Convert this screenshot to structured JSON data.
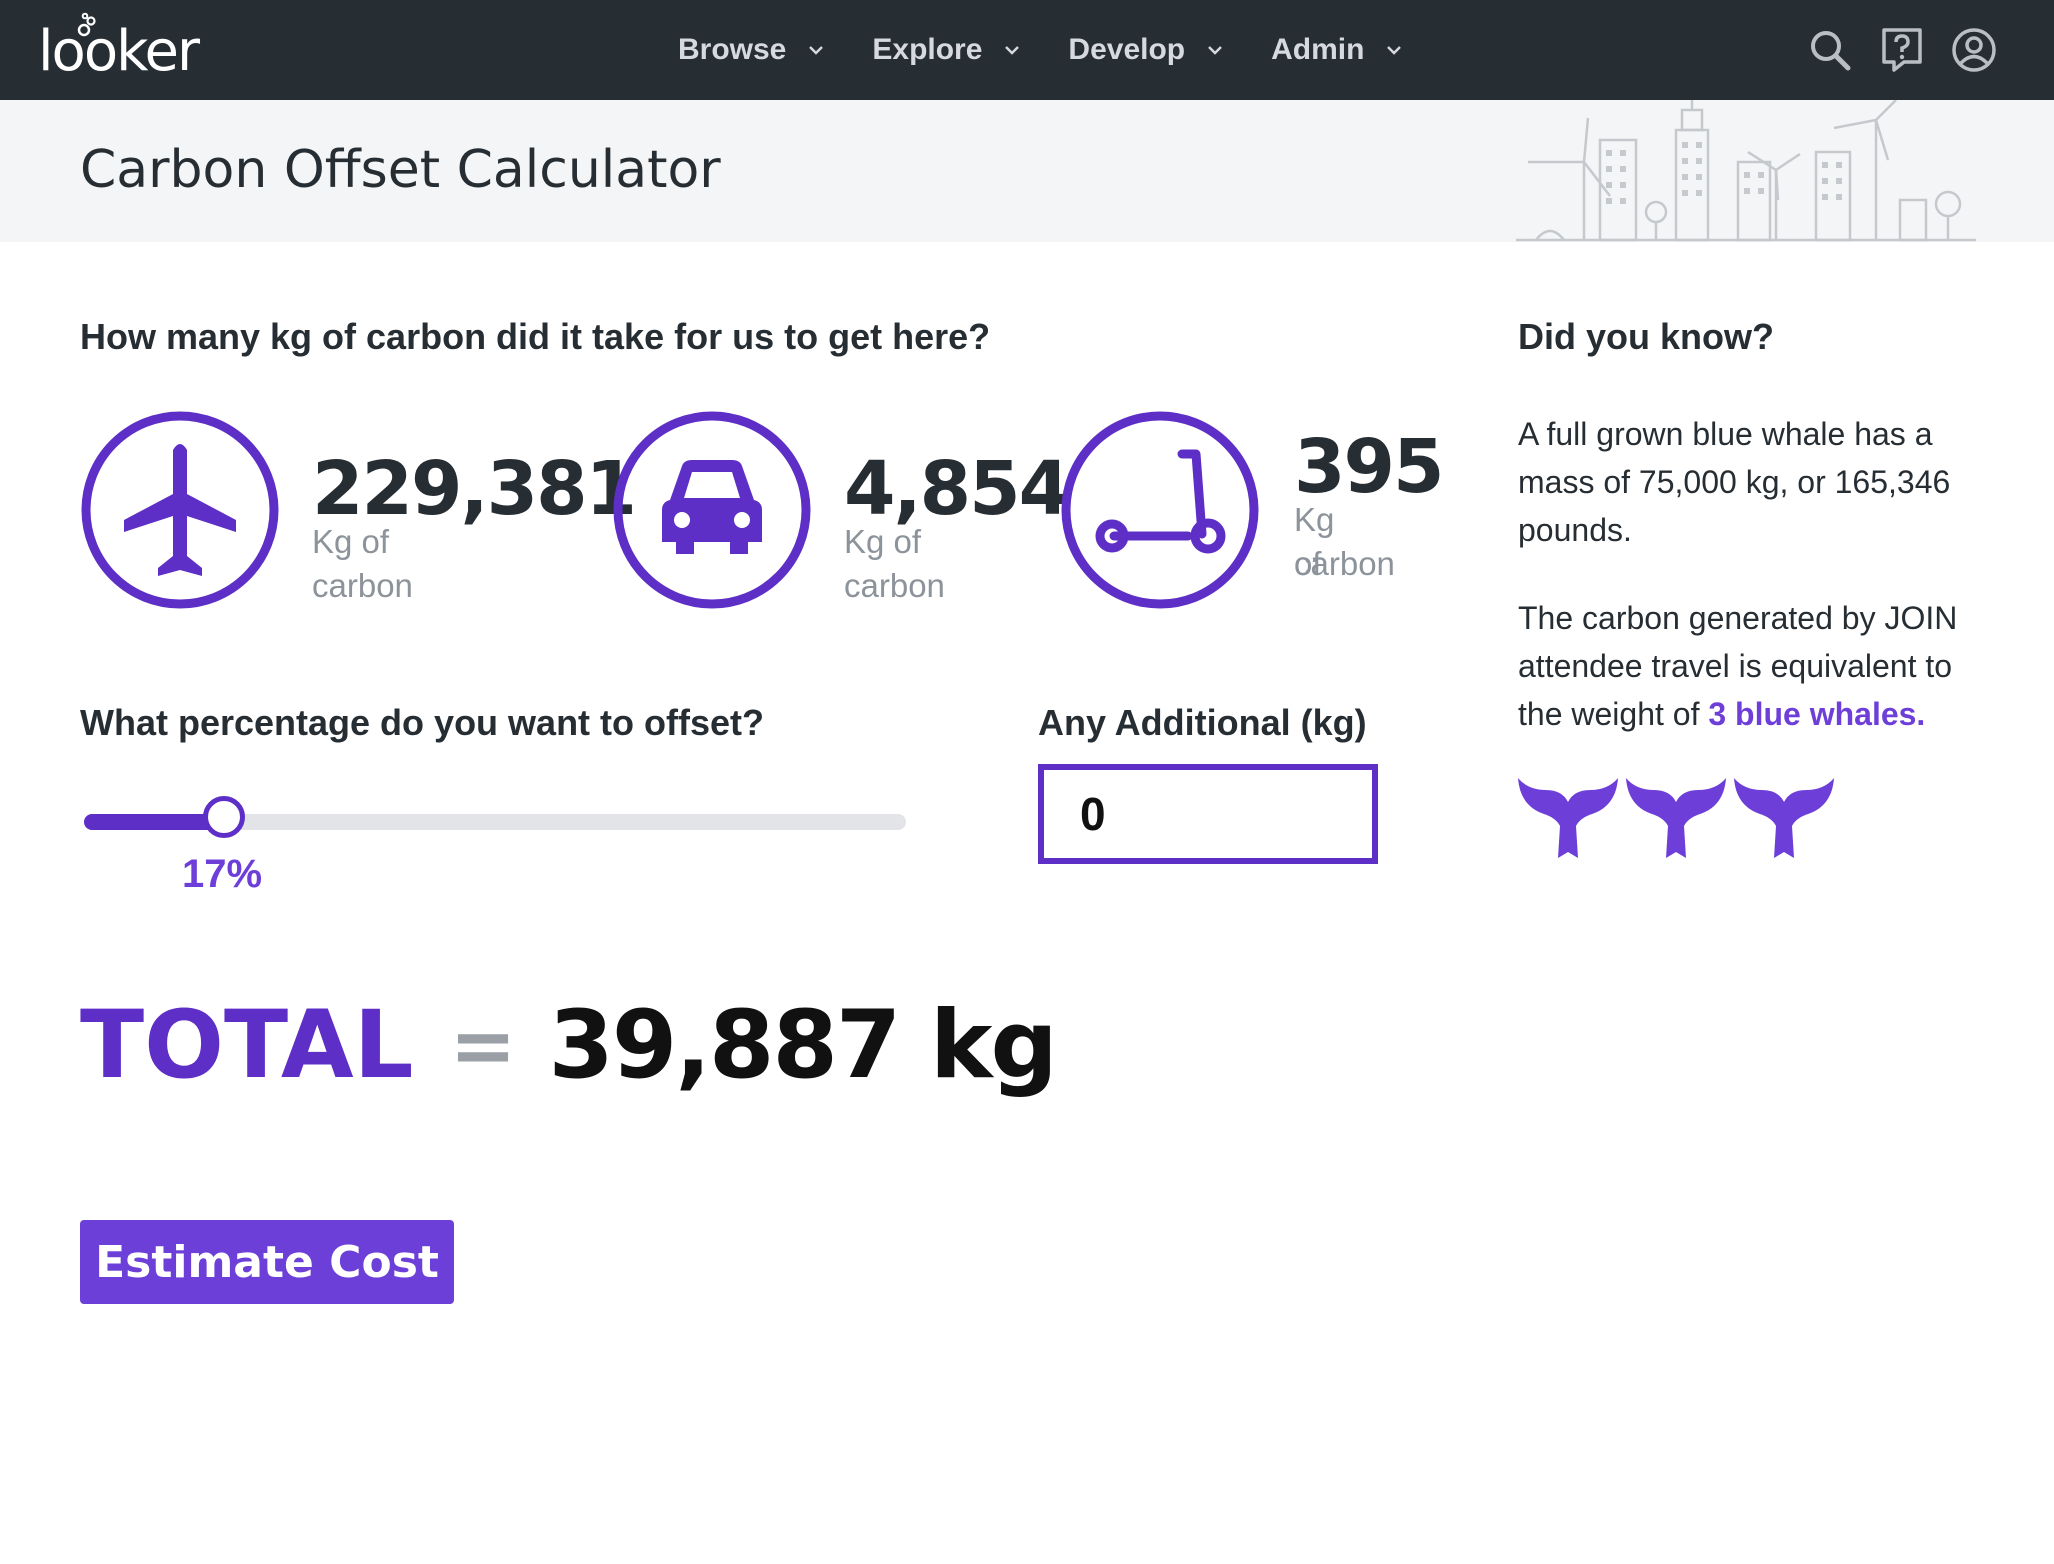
{
  "nav": {
    "logo_text": "looker",
    "menu": [
      {
        "label": "Browse"
      },
      {
        "label": "Explore"
      },
      {
        "label": "Develop"
      },
      {
        "label": "Admin"
      }
    ],
    "icons": [
      "search-icon",
      "help-icon",
      "account-icon"
    ]
  },
  "header": {
    "title": "Carbon Offset Calculator"
  },
  "carbon": {
    "question": "How many kg of carbon did it take for us to get here?",
    "stats": [
      {
        "icon": "airplane-icon",
        "value": "229,381",
        "unit": "Kg of carbon"
      },
      {
        "icon": "car-icon",
        "value": "4,854",
        "unit": "Kg of carbon"
      },
      {
        "icon": "scooter-icon",
        "value": "395",
        "unit_line1": "Kg of",
        "unit_line2": "carbon"
      }
    ]
  },
  "offset": {
    "question": "What percentage do you want to offset?",
    "percent": 17,
    "percent_label": "17%"
  },
  "additional": {
    "label": "Any Additional (kg)",
    "value": "0"
  },
  "total": {
    "label": "TOTAL",
    "equals": "=",
    "value": "39,887 kg"
  },
  "button": {
    "label": "Estimate Cost"
  },
  "did_you_know": {
    "title": "Did you know?",
    "para1": "A full grown blue whale has a mass of 75,000 kg, or 165,346 pounds.",
    "para2_prefix": "The carbon generated by JOIN attendee travel is equivalent to the weight of ",
    "para2_highlight": "3 blue whales.",
    "whale_count": 3
  },
  "colors": {
    "accent": "#5e2fc6",
    "nav_bg": "#262d33",
    "header_bg": "#f4f5f6"
  }
}
